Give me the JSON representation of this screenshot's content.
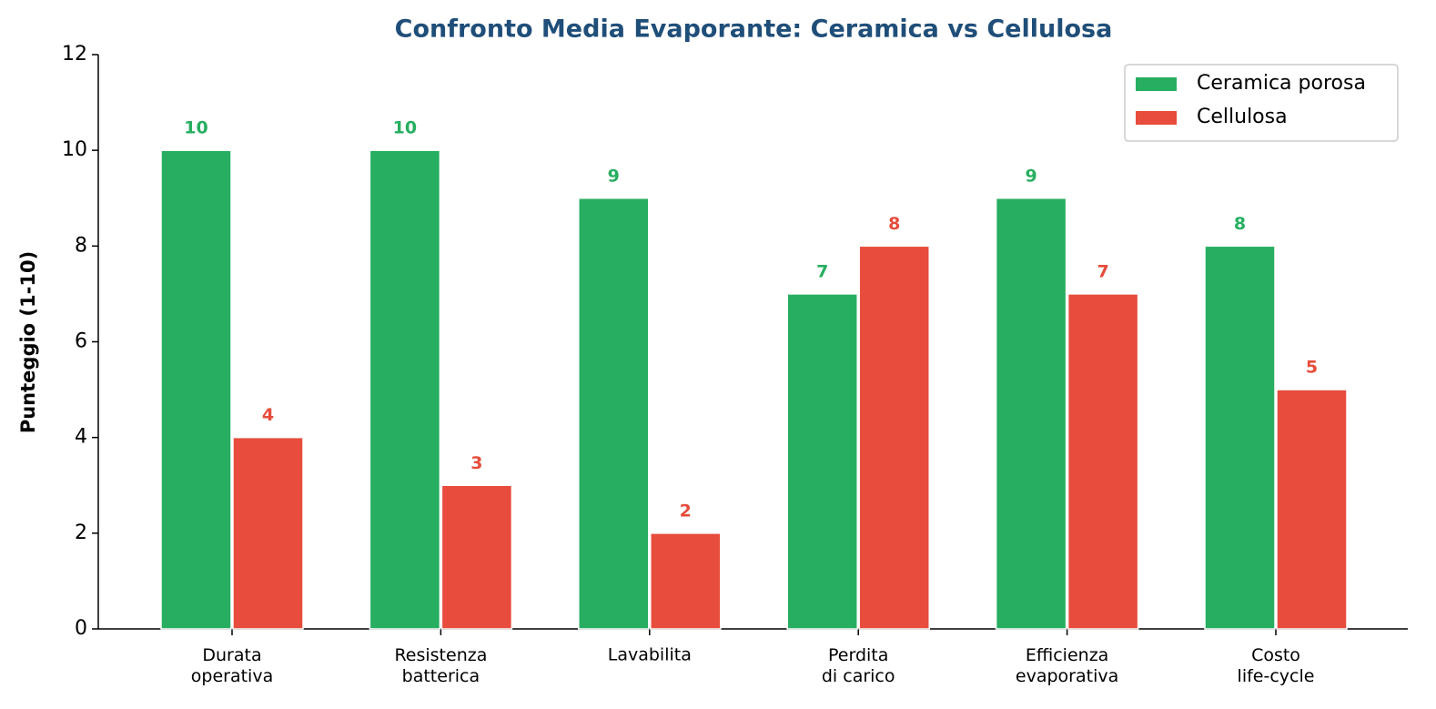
{
  "chart_data": {
    "type": "bar",
    "title": "Confronto Media Evaporante: Ceramica vs Cellulosa",
    "y_label": "Punteggio (1-10)",
    "categories": [
      "Durata\noperativa",
      "Resistenza\nbatterica",
      "Lavabilita",
      "Perdita\ndi carico",
      "Efficienza\nevaporativa",
      "Costo\nlife-cycle"
    ],
    "series": [
      {
        "name": "Ceramica porosa",
        "color": "#27ae60",
        "values": [
          10,
          10,
          9,
          7,
          9,
          8
        ]
      },
      {
        "name": "Cellulosa",
        "color": "#e74c3c",
        "values": [
          4,
          3,
          2,
          8,
          7,
          5
        ]
      }
    ],
    "ylim": [
      0,
      12
    ],
    "yticks": [
      0,
      2,
      4,
      6,
      8,
      10,
      12
    ],
    "legend": "upper right",
    "grid": false
  }
}
